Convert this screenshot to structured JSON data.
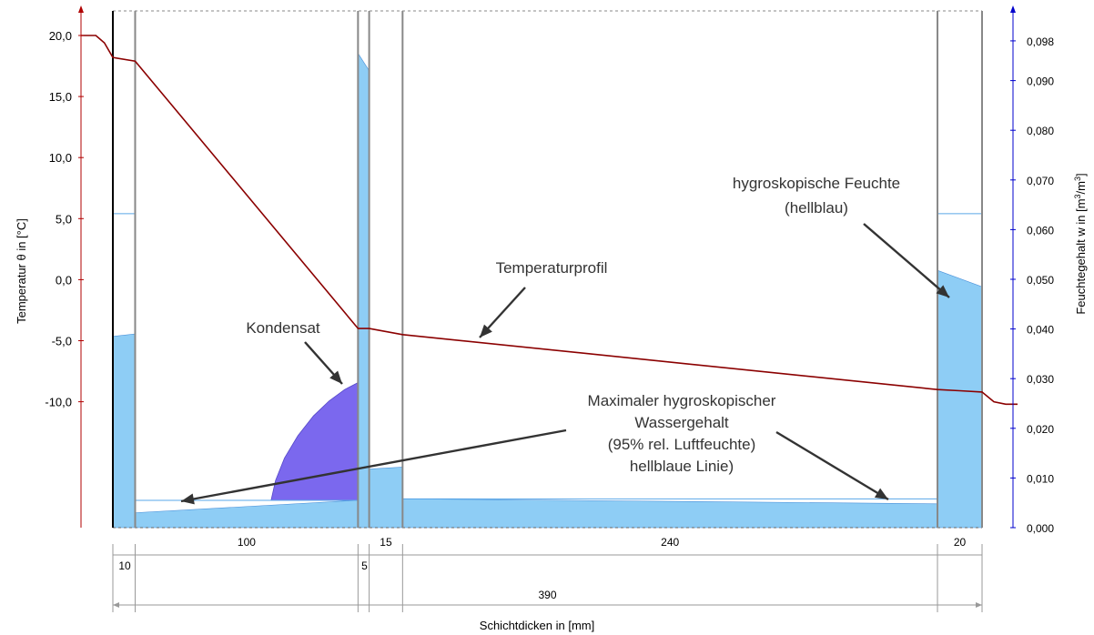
{
  "chart_data": {
    "type": "line",
    "left_axis": {
      "label": "Temperatur θ in [°C]",
      "ticks": [
        20,
        15,
        10,
        5,
        0,
        -5,
        -10
      ],
      "tick_labels": [
        "20,0",
        "15,0",
        "10,0",
        "5,0",
        "0,0",
        "-5,0",
        "-10,0"
      ],
      "range": [
        -21,
        22
      ],
      "color": "#b00000"
    },
    "right_axis": {
      "label_main": "Feuchtegehalt w in [m",
      "label_unit": "3",
      "label_mid": "/m",
      "label_unit2": "3",
      "label_end": "]",
      "ticks": [
        0,
        0.01,
        0.02,
        0.03,
        0.04,
        0.05,
        0.06,
        0.07,
        0.08,
        0.09,
        0.098
      ],
      "tick_labels": [
        "0,000",
        "0,010",
        "0,020",
        "0,030",
        "0,040",
        "0,050",
        "0,060",
        "0,070",
        "0,080",
        "0,090",
        "0,098"
      ],
      "range": [
        0,
        0.1
      ],
      "color": "#0000cc"
    },
    "x_axis": {
      "label": "Schichtdicken in [mm]",
      "unit": "mm",
      "total": 390,
      "total_label": "390"
    },
    "layers": [
      {
        "thickness": 10,
        "label": "10"
      },
      {
        "thickness": 100,
        "label": "100"
      },
      {
        "thickness": 5,
        "label": "5"
      },
      {
        "thickness": 15,
        "label": "15"
      },
      {
        "thickness": 240,
        "label": "240"
      },
      {
        "thickness": 20,
        "label": "20"
      }
    ],
    "series": [
      {
        "type": "line",
        "color": "#8b0000",
        "points": [
          [
            -15,
            20.0
          ],
          [
            -8,
            20.0
          ],
          [
            -4,
            19.4
          ],
          [
            0,
            18.2
          ],
          [
            10,
            17.9
          ],
          [
            110,
            -4.0
          ],
          [
            115,
            -4.0
          ],
          [
            130,
            -4.5
          ],
          [
            370,
            -9.0
          ],
          [
            380,
            -9.1
          ],
          [
            390,
            -9.2
          ],
          [
            395,
            -10.0
          ],
          [
            400,
            -10.2
          ],
          [
            405,
            -10.2
          ]
        ]
      }
    ],
    "moisture": {
      "hygroscopic": [
        {
          "x_start": 0,
          "x_end": 10,
          "w_start": 0.0385,
          "w_end": 0.039
        },
        {
          "x_start": 10,
          "x_end": 110,
          "w_start": 0.003,
          "w_end": 0.0055
        },
        {
          "x_start": 110,
          "x_end": 115,
          "w_start": 0.0955,
          "w_end": 0.092
        },
        {
          "x_start": 115,
          "x_end": 130,
          "w_start": 0.0118,
          "w_end": 0.0122
        },
        {
          "x_start": 130,
          "x_end": 370,
          "w_start": 0.0058,
          "w_end": 0.0048
        },
        {
          "x_start": 370,
          "x_end": 390,
          "w_start": 0.0518,
          "w_end": 0.0485
        }
      ],
      "max_hygroscopic": [
        {
          "x_start": 0,
          "x_end": 10,
          "w": 0.0632
        },
        {
          "x_start": 10,
          "x_end": 110,
          "w": 0.0055
        },
        {
          "x_start": 130,
          "x_end": 370,
          "w": 0.0058
        },
        {
          "x_start": 370,
          "x_end": 390,
          "w": 0.0632
        }
      ],
      "condensate": {
        "x_start": 71,
        "x_end": 110,
        "w": [
          [
            71,
            0.0055
          ],
          [
            73,
            0.0095
          ],
          [
            77,
            0.014
          ],
          [
            83,
            0.0185
          ],
          [
            90,
            0.0225
          ],
          [
            97,
            0.0255
          ],
          [
            104,
            0.0278
          ],
          [
            110,
            0.0292
          ]
        ]
      }
    },
    "annotations": {
      "kondensat": "Kondensat",
      "temperaturprofil": "Temperaturprofil",
      "hygro_line1": "hygroskopische Feuchte",
      "hygro_line2": "(hellblau)",
      "max_line1": "Maximaler hygroskopischer",
      "max_line2": "Wassergehalt",
      "max_line3": "(95% rel. Luftfeuchte)",
      "max_line4": "hellblaue Linie)"
    },
    "colors": {
      "hygroscopic_fill": "#8ecdf5",
      "max_line": "#5aa7e8",
      "condensate": "#7b68ee",
      "layer_boundary": "#888888",
      "arrow": "#333333"
    }
  }
}
